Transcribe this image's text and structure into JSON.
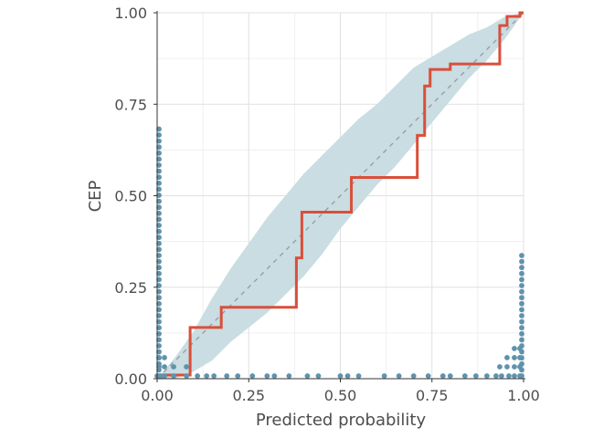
{
  "chart_data": {
    "type": "line",
    "title": "",
    "xlabel": "Predicted probability",
    "ylabel": "CEP",
    "xlim": [
      0,
      1
    ],
    "ylim": [
      0,
      1
    ],
    "xticks": [
      "0.00",
      "0.25",
      "0.50",
      "0.75",
      "1.00"
    ],
    "yticks": [
      "0.00",
      "0.25",
      "0.50",
      "0.75",
      "1.00"
    ],
    "grid": true,
    "colors": {
      "cep_line": "#d94f3a",
      "band": "#c9dde3",
      "points": "#5f93ac",
      "diagonal": "#999999",
      "grid": "#e0e0e0",
      "axis": "#333333"
    },
    "series": [
      {
        "type": "step",
        "x": [
          0.0,
          0.09,
          0.09,
          0.175,
          0.175,
          0.38,
          0.38,
          0.395,
          0.395,
          0.53,
          0.53,
          0.71,
          0.71,
          0.73,
          0.73,
          0.745,
          0.745,
          0.8,
          0.8,
          0.935,
          0.935,
          0.955,
          0.955,
          0.99,
          0.99,
          1.0
        ],
        "y": [
          0.01,
          0.01,
          0.14,
          0.14,
          0.195,
          0.195,
          0.33,
          0.33,
          0.455,
          0.455,
          0.55,
          0.55,
          0.665,
          0.665,
          0.8,
          0.8,
          0.845,
          0.845,
          0.86,
          0.86,
          0.965,
          0.965,
          0.99,
          0.99,
          1.0,
          1.0
        ]
      },
      {
        "type": "band",
        "x": [
          0.0,
          0.05,
          0.1,
          0.15,
          0.2,
          0.25,
          0.3,
          0.35,
          0.4,
          0.45,
          0.5,
          0.55,
          0.6,
          0.65,
          0.7,
          0.75,
          0.8,
          0.85,
          0.9,
          0.95,
          1.0
        ],
        "lower": [
          0.0,
          0.0,
          0.02,
          0.05,
          0.1,
          0.14,
          0.18,
          0.23,
          0.28,
          0.34,
          0.41,
          0.47,
          0.53,
          0.58,
          0.64,
          0.7,
          0.76,
          0.82,
          0.87,
          0.93,
          1.0
        ],
        "upper": [
          0.0,
          0.06,
          0.13,
          0.22,
          0.3,
          0.37,
          0.44,
          0.5,
          0.56,
          0.61,
          0.66,
          0.71,
          0.75,
          0.8,
          0.85,
          0.88,
          0.91,
          0.94,
          0.96,
          0.99,
          1.0
        ]
      }
    ],
    "rug": {
      "left_column_x": 0.0,
      "left_column_top": 0.69,
      "right_column_x": 1.0,
      "right_column_top": 0.35,
      "bottom_row_x": [
        0.0,
        0.01,
        0.02,
        0.045,
        0.08,
        0.11,
        0.135,
        0.155,
        0.19,
        0.22,
        0.26,
        0.3,
        0.32,
        0.36,
        0.41,
        0.44,
        0.5,
        0.52,
        0.55,
        0.62,
        0.66,
        0.7,
        0.74,
        0.78,
        0.8,
        0.84,
        0.87,
        0.9,
        0.925,
        0.94,
        0.96,
        0.975,
        0.99
      ],
      "stacked_points": [
        {
          "x": 0.005,
          "y": [
            0.025,
            0.05
          ]
        },
        {
          "x": 0.02,
          "y": [
            0.025,
            0.05
          ]
        },
        {
          "x": 0.045,
          "y": [
            0.025
          ]
        },
        {
          "x": 0.08,
          "y": [
            0.025
          ]
        },
        {
          "x": 0.935,
          "y": [
            0.025
          ]
        },
        {
          "x": 0.955,
          "y": [
            0.025,
            0.05
          ]
        },
        {
          "x": 0.975,
          "y": [
            0.025,
            0.05,
            0.075
          ]
        },
        {
          "x": 0.99,
          "y": [
            0.025,
            0.05,
            0.075
          ]
        }
      ]
    }
  }
}
